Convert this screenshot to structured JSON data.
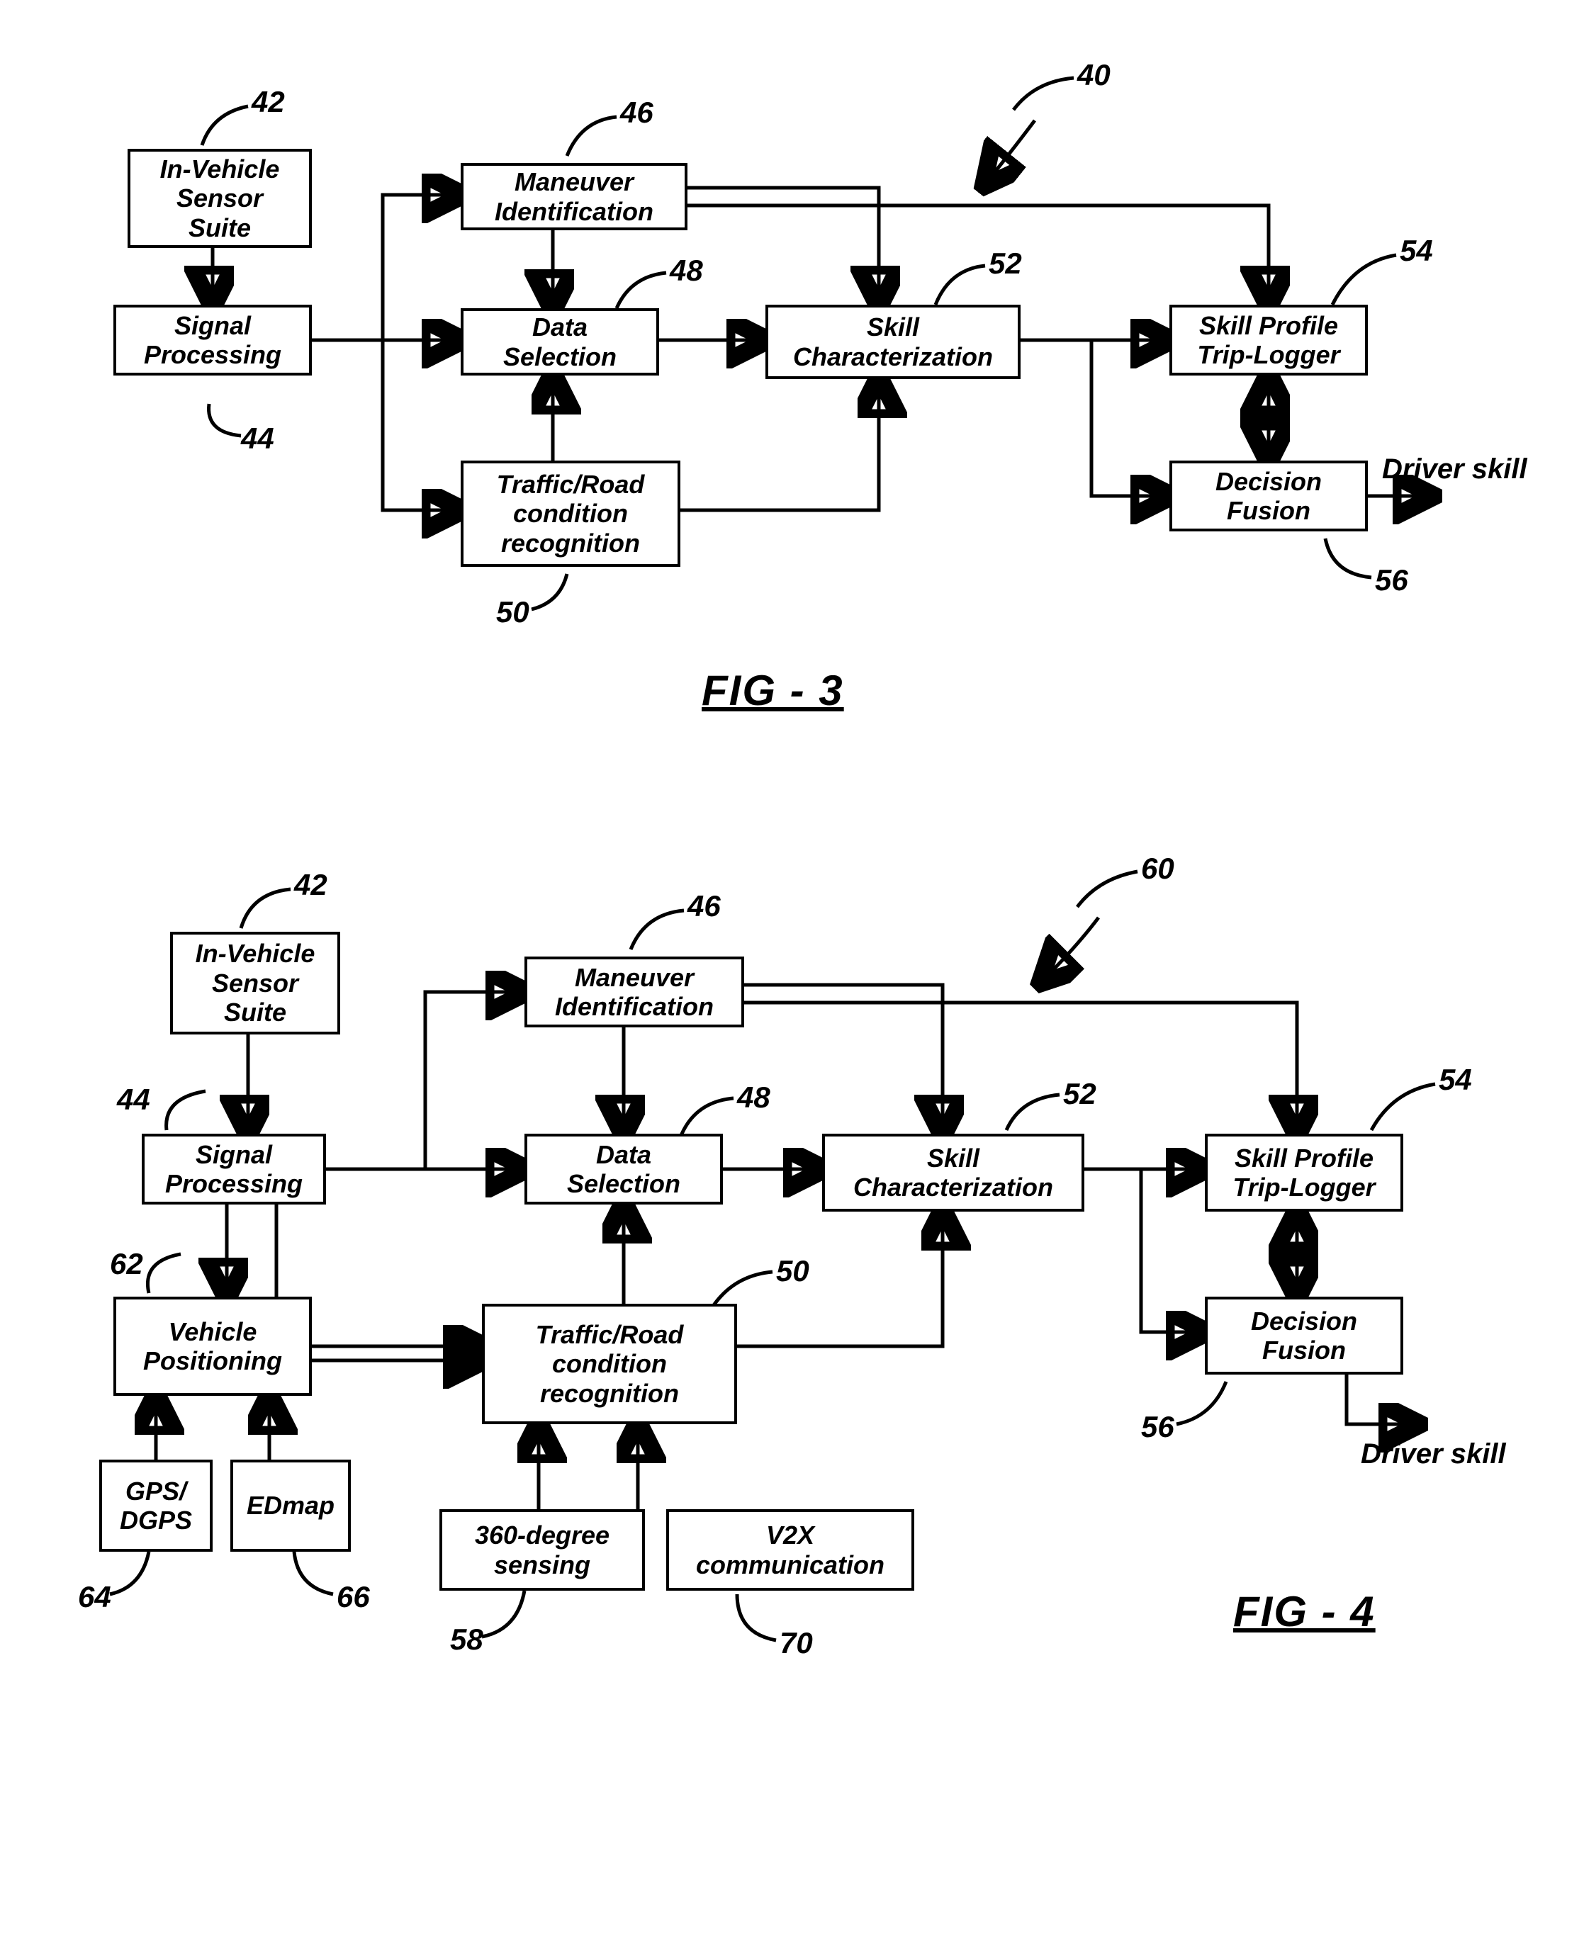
{
  "fig3": {
    "ref_system": "40",
    "caption": "FIG - 3",
    "output_label": "Driver skill",
    "boxes": {
      "sensor": {
        "label": "In-Vehicle\nSensor\nSuite",
        "ref": "42"
      },
      "sigproc": {
        "label": "Signal\nProcessing",
        "ref": "44"
      },
      "maneuver": {
        "label": "Maneuver\nIdentification",
        "ref": "46"
      },
      "datasel": {
        "label": "Data\nSelection",
        "ref": "48"
      },
      "traffic": {
        "label": "Traffic/Road\ncondition\nrecognition",
        "ref": "50"
      },
      "skill": {
        "label": "Skill\nCharacterization",
        "ref": "52"
      },
      "profile": {
        "label": "Skill Profile\nTrip-Logger",
        "ref": "54"
      },
      "fusion": {
        "label": "Decision\nFusion",
        "ref": "56"
      }
    }
  },
  "fig4": {
    "ref_system": "60",
    "caption": "FIG - 4",
    "output_label": "Driver skill",
    "boxes": {
      "sensor": {
        "label": "In-Vehicle\nSensor\nSuite",
        "ref": "42"
      },
      "sigproc": {
        "label": "Signal\nProcessing",
        "ref": "44"
      },
      "maneuver": {
        "label": "Maneuver\nIdentification",
        "ref": "46"
      },
      "datasel": {
        "label": "Data\nSelection",
        "ref": "48"
      },
      "traffic": {
        "label": "Traffic/Road\ncondition\nrecognition",
        "ref": "50"
      },
      "skill": {
        "label": "Skill\nCharacterization",
        "ref": "52"
      },
      "profile": {
        "label": "Skill Profile\nTrip-Logger",
        "ref": "54"
      },
      "fusion": {
        "label": "Decision\nFusion",
        "ref": "56"
      },
      "vehpos": {
        "label": "Vehicle\nPositioning",
        "ref": "62"
      },
      "gps": {
        "label": "GPS/\nDGPS",
        "ref": "64"
      },
      "edmap": {
        "label": "EDmap",
        "ref": "66"
      },
      "sensing": {
        "label": "360-degree\nsensing",
        "ref": "58"
      },
      "v2x": {
        "label": "V2X\ncommunication",
        "ref": "70"
      }
    }
  },
  "style": {
    "box_border": "#000000",
    "box_bg": "#ffffff",
    "line_color": "#000000",
    "line_width": 5,
    "font_family": "Arial",
    "box_font_size": 36,
    "ref_font_size": 42,
    "caption_font_size": 60
  }
}
